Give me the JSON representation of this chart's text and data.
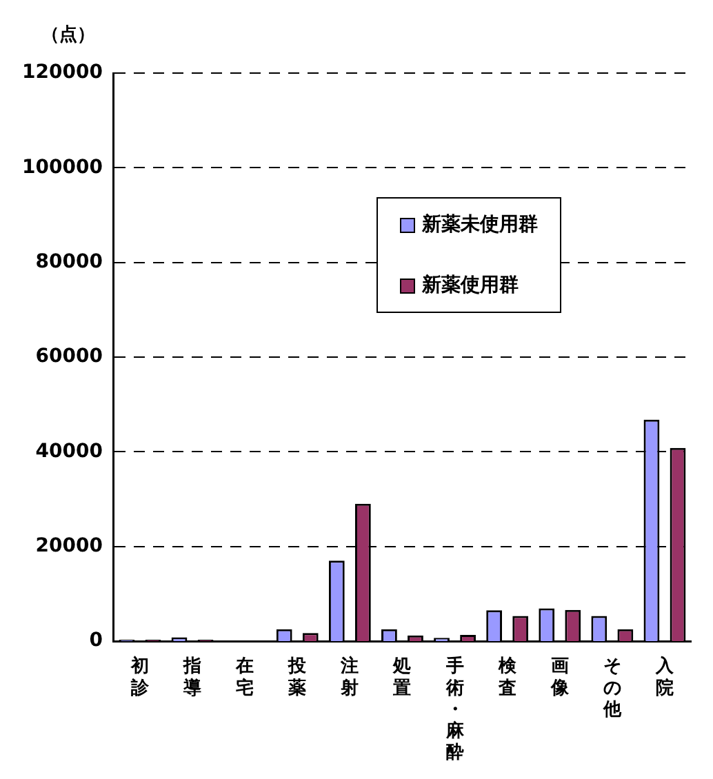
{
  "chart_data": {
    "type": "bar",
    "ylabel": "（点）",
    "categories": [
      "初診",
      "指導",
      "在宅",
      "投薬",
      "注射",
      "処置",
      "手術・麻酔",
      "検査",
      "画像",
      "その他",
      "入院"
    ],
    "series": [
      {
        "name": "新薬未使用群",
        "color": "#9999ff",
        "values": [
          300,
          800,
          0,
          2500,
          17000,
          2500,
          700,
          6500,
          6900,
          5300,
          46800
        ]
      },
      {
        "name": "新薬使用群",
        "color": "#993366",
        "values": [
          300,
          300,
          0,
          1700,
          29000,
          1200,
          1300,
          5300,
          6600,
          2500,
          40800
        ]
      }
    ],
    "ylim": [
      0,
      120000
    ],
    "yticks": [
      0,
      20000,
      40000,
      60000,
      80000,
      100000,
      120000
    ],
    "grid": "y",
    "legend": "top right"
  }
}
